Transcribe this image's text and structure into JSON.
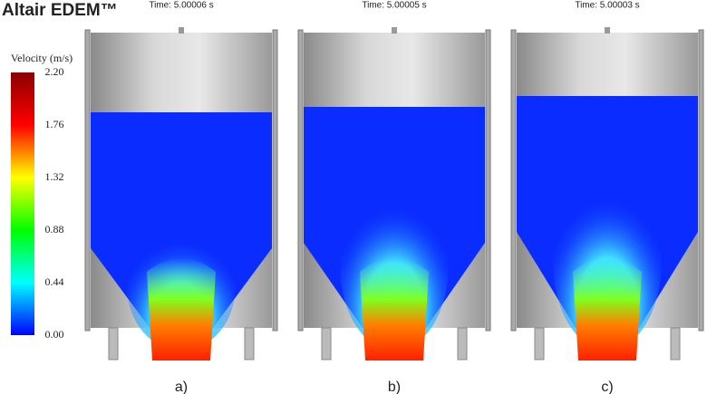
{
  "header": {
    "logo": "Altair EDEM™"
  },
  "colorbar": {
    "title": "Velocity (m/s)",
    "ticks": [
      "2.20",
      "1.76",
      "1.32",
      "0.88",
      "0.44",
      "0.00"
    ]
  },
  "panels": [
    {
      "time": "Time: 5.00006 s",
      "label": "a)"
    },
    {
      "time": "Time: 5.00005 s",
      "label": "b)"
    },
    {
      "time": "Time: 5.00003 s",
      "label": "c)"
    }
  ]
}
